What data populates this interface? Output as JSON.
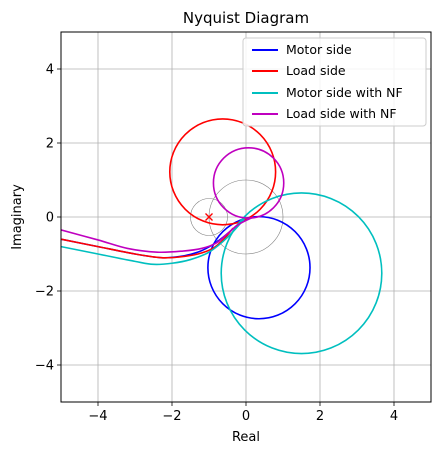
{
  "chart_data": {
    "type": "line",
    "title": "Nyquist Diagram",
    "xlabel": "Real",
    "ylabel": "Imaginary",
    "xlim": [
      -5,
      5
    ],
    "ylim": [
      -5,
      5
    ],
    "xticks": [
      -4,
      -2,
      0,
      2,
      4
    ],
    "yticks": [
      -4,
      -2,
      0,
      2,
      4
    ],
    "grid": true,
    "legend_position": "top-right",
    "critical_point": {
      "x": -1,
      "y": 0,
      "marker": "x",
      "color": "#ff0000"
    },
    "reference_circles": [
      {
        "cx": 0,
        "cy": 0,
        "r": 1,
        "color": "#808080"
      },
      {
        "cx": -1,
        "cy": 0,
        "r": 0.5,
        "color": "#808080"
      }
    ],
    "series": [
      {
        "name": "Motor side",
        "color": "#0000ff",
        "x": [
          0,
          -0.5,
          -0.9,
          -1.3,
          -1.8,
          -2.3,
          -3.0,
          -4.0,
          -5.0
        ],
        "y": [
          0,
          -0.45,
          -0.75,
          -0.95,
          -1.07,
          -1.1,
          -1.0,
          -0.8,
          -0.6
        ],
        "loop": {
          "cx": 0.35,
          "cy": -1.37,
          "r": 1.38
        }
      },
      {
        "name": "Load side",
        "color": "#ff0000",
        "x": [
          -0.35,
          -0.6,
          -0.9,
          -1.3,
          -1.8,
          -2.3,
          -3.0,
          -4.0,
          -5.0
        ],
        "y": [
          -0.3,
          -0.6,
          -0.85,
          -1.0,
          -1.08,
          -1.1,
          -1.0,
          -0.8,
          -0.6
        ],
        "loop": {
          "cx": -0.63,
          "cy": 1.22,
          "r": 1.43
        }
      },
      {
        "name": "Motor side with NF",
        "color": "#00bfbf",
        "x": [
          0,
          -0.5,
          -1.0,
          -1.5,
          -2.0,
          -2.5,
          -3.0,
          -4.0,
          -5.0
        ],
        "y": [
          0,
          -0.55,
          -0.95,
          -1.15,
          -1.25,
          -1.28,
          -1.2,
          -1.0,
          -0.8
        ],
        "loop": {
          "cx": 1.5,
          "cy": -1.52,
          "r": 2.17
        }
      },
      {
        "name": "Load side with NF",
        "color": "#bf00bf",
        "x": [
          0.2,
          -0.2,
          -0.5,
          -0.8,
          -1.2,
          -1.7,
          -2.4,
          -3.2,
          -4.0,
          -5.0
        ],
        "y": [
          0.0,
          -0.2,
          -0.45,
          -0.7,
          -0.85,
          -0.92,
          -0.95,
          -0.85,
          -0.62,
          -0.35
        ],
        "loop": {
          "cx": 0.07,
          "cy": 0.92,
          "r": 0.95
        }
      }
    ]
  }
}
